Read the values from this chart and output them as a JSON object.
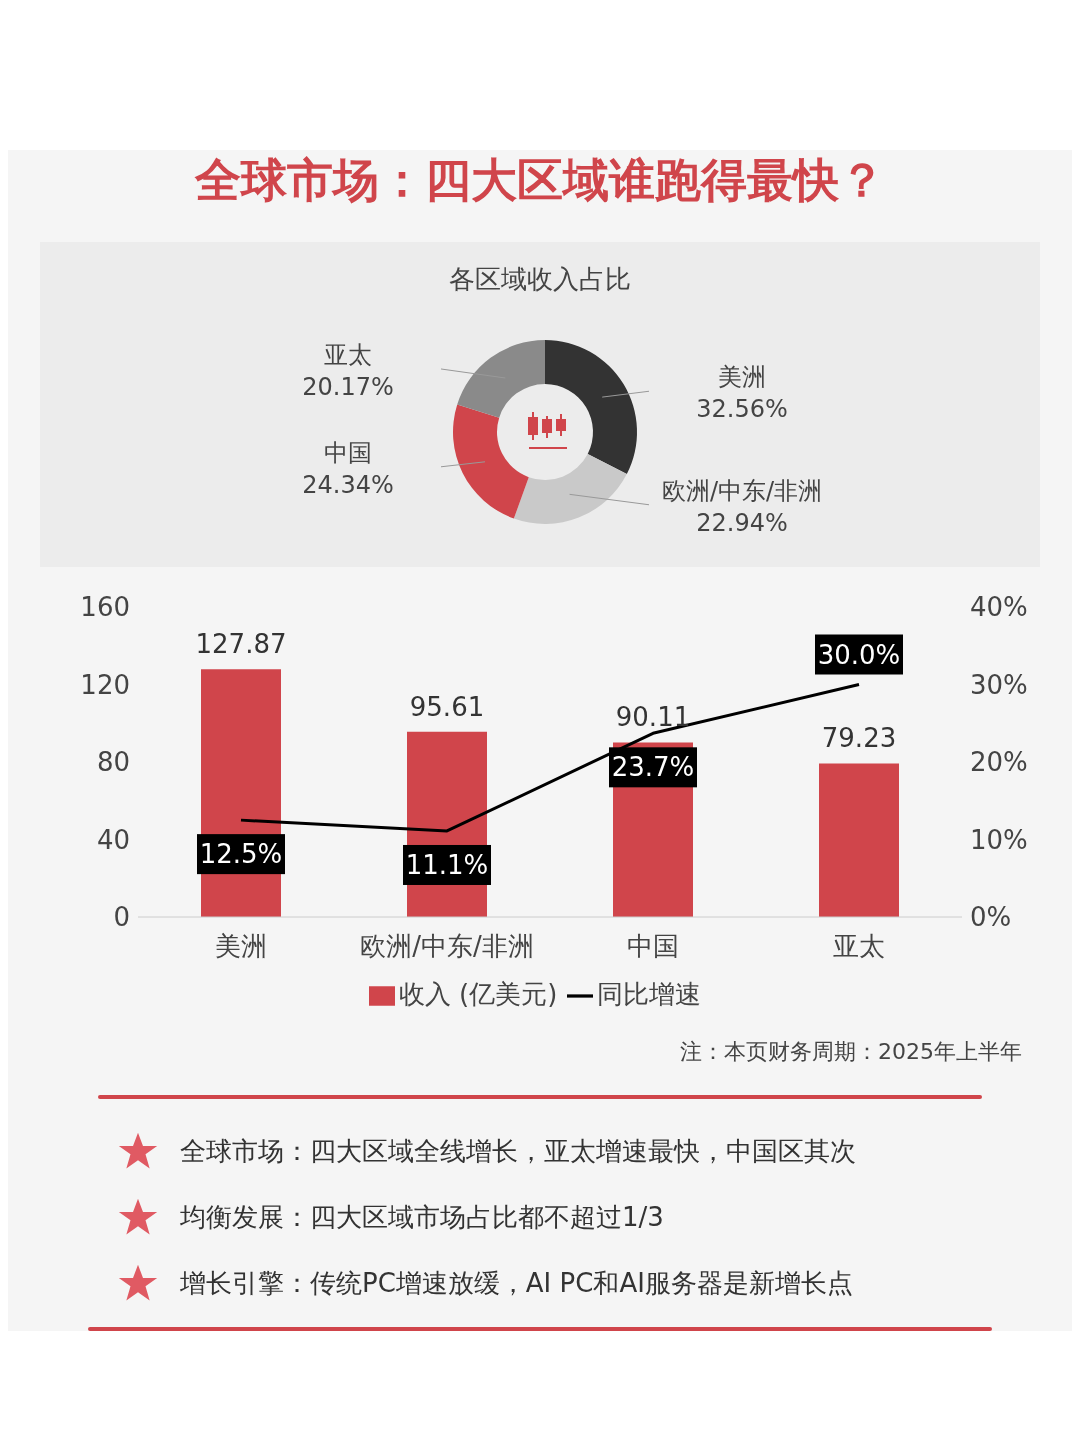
{
  "chart_data": [
    {
      "type": "donut",
      "title": "全球市场：四大区域谁跑得最快？",
      "subtitle": "各区域收入占比",
      "categories": [
        "美洲",
        "欧洲/中东/非洲",
        "中国",
        "亚太"
      ],
      "values": [
        32.56,
        22.94,
        24.34,
        20.17
      ],
      "value_labels": [
        "32.56%",
        "22.94%",
        "24.34%",
        "20.17%"
      ],
      "colors": [
        "#333333",
        "#c9c9c9",
        "#d0454b",
        "#8a8a8a"
      ]
    },
    {
      "type": "bar",
      "categories": [
        "美洲",
        "欧洲/中东/非洲",
        "中国",
        "亚太"
      ],
      "series": [
        {
          "name": "收入 (亿美元)",
          "type": "bar",
          "color": "#d0454b",
          "values": [
            127.87,
            95.61,
            90.11,
            79.23
          ],
          "value_labels": [
            "127.87",
            "95.61",
            "90.11",
            "79.23"
          ]
        },
        {
          "name": "同比增速",
          "type": "line",
          "axis": "y2",
          "color": "#000000",
          "values": [
            12.5,
            11.1,
            23.7,
            30.0
          ],
          "value_labels": [
            "12.5%",
            "11.1%",
            "23.7%",
            "30.0%"
          ]
        }
      ],
      "ylim": [
        0,
        160
      ],
      "yticks": [
        0,
        40,
        80,
        120,
        160
      ],
      "y2lim": [
        0,
        40
      ],
      "y2ticks": [
        {
          "value": 0,
          "label": "0%"
        },
        {
          "value": 10,
          "label": "10%"
        },
        {
          "value": 20,
          "label": "20%"
        },
        {
          "value": 30,
          "label": "30%"
        },
        {
          "value": 40,
          "label": "40%"
        }
      ],
      "legend": "bottom",
      "marker": "none",
      "line_style": "solid",
      "annotations": [
        "注：本页财务周期：2025年上半年",
        "全球市场：四大区域全线增长，亚太增速最快，中国区其次",
        "均衡发展：四大区域市场占比都不超过1/3",
        "增长引擎：传统PC增速放缓，AI PC和AI服务器是新增长点"
      ]
    }
  ]
}
